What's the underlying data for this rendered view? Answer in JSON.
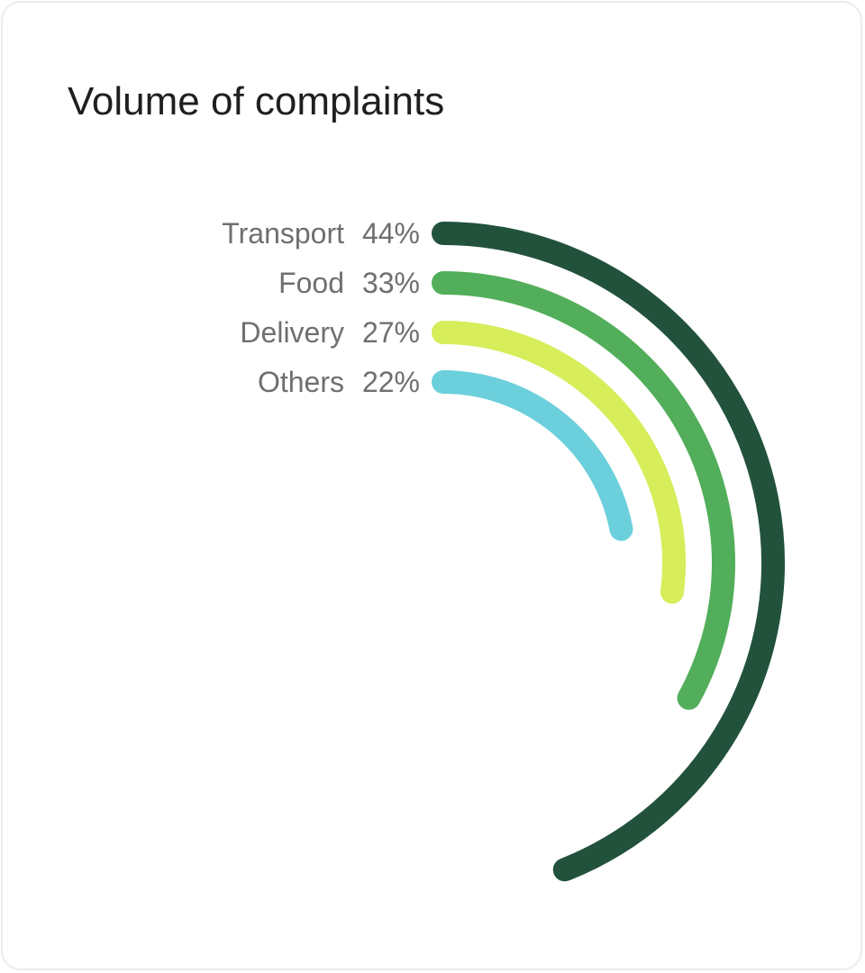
{
  "title": "Volume of complaints",
  "chart_data": {
    "type": "radial-bar",
    "title": "Volume of complaints",
    "max_value": 100,
    "series": [
      {
        "name": "Transport",
        "value": 44,
        "label": "44%",
        "color": "#22523c"
      },
      {
        "name": "Food",
        "value": 33,
        "label": "33%",
        "color": "#52ae5a"
      },
      {
        "name": "Delivery",
        "value": 27,
        "label": "27%",
        "color": "#d7ed5a"
      },
      {
        "name": "Others",
        "value": 22,
        "label": "22%",
        "color": "#6ccfdc"
      }
    ]
  }
}
